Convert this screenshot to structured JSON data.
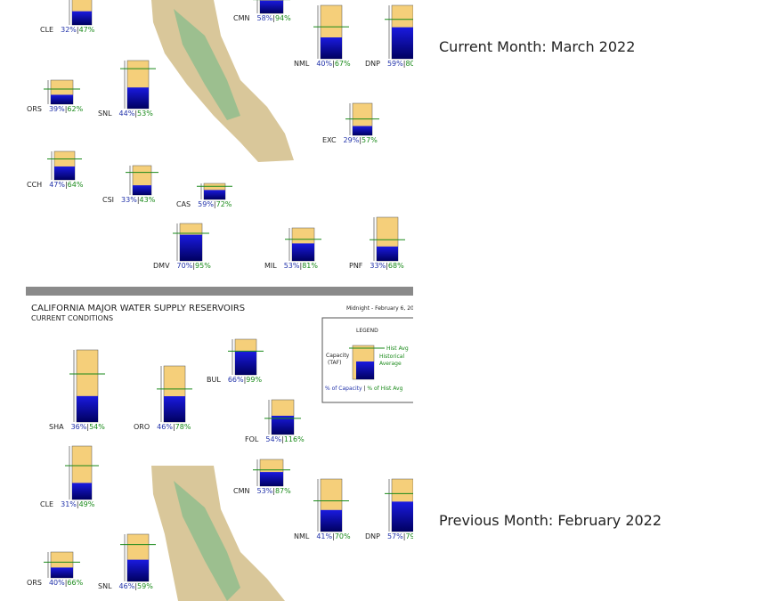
{
  "current_label": "Current Month: March 2022",
  "previous_label": "Previous Month: February 2022",
  "separator": "|",
  "panels": [
    {
      "reservoirs": [
        {
          "code": "CLE",
          "pct_capacity": 32,
          "pct_capacity_label": "32%",
          "pct_hist": 47,
          "pct_hist_label": "47%"
        },
        {
          "code": "CMN",
          "pct_capacity": 58,
          "pct_capacity_label": "58%",
          "pct_hist": 94,
          "pct_hist_label": "94%"
        },
        {
          "code": "NML",
          "pct_capacity": 40,
          "pct_capacity_label": "40%",
          "pct_hist": 67,
          "pct_hist_label": "67%"
        },
        {
          "code": "DNP",
          "pct_capacity": 59,
          "pct_capacity_label": "59%",
          "pct_hist": 80,
          "pct_hist_label": "80"
        },
        {
          "code": "ORS",
          "pct_capacity": 39,
          "pct_capacity_label": "39%",
          "pct_hist": 62,
          "pct_hist_label": "62%"
        },
        {
          "code": "SNL",
          "pct_capacity": 44,
          "pct_capacity_label": "44%",
          "pct_hist": 53,
          "pct_hist_label": "53%"
        },
        {
          "code": "EXC",
          "pct_capacity": 29,
          "pct_capacity_label": "29%",
          "pct_hist": 57,
          "pct_hist_label": "57%"
        },
        {
          "code": "CCH",
          "pct_capacity": 47,
          "pct_capacity_label": "47%",
          "pct_hist": 64,
          "pct_hist_label": "64%"
        },
        {
          "code": "CSI",
          "pct_capacity": 33,
          "pct_capacity_label": "33%",
          "pct_hist": 43,
          "pct_hist_label": "43%"
        },
        {
          "code": "CAS",
          "pct_capacity": 59,
          "pct_capacity_label": "59%",
          "pct_hist": 72,
          "pct_hist_label": "72%"
        },
        {
          "code": "DMV",
          "pct_capacity": 70,
          "pct_capacity_label": "70%",
          "pct_hist": 95,
          "pct_hist_label": "95%"
        },
        {
          "code": "MIL",
          "pct_capacity": 53,
          "pct_capacity_label": "53%",
          "pct_hist": 81,
          "pct_hist_label": "81%"
        },
        {
          "code": "PNF",
          "pct_capacity": 33,
          "pct_capacity_label": "33%",
          "pct_hist": 68,
          "pct_hist_label": "68%"
        }
      ]
    },
    {
      "title": "CALIFORNIA MAJOR WATER SUPPLY RESERVOIRS",
      "subtitle": "CURRENT CONDITIONS",
      "timestamp": "Midnight - February 6, 20",
      "legend": {
        "title": "LEGEND",
        "capacity": "Capacity",
        "capacity_unit": "(TAF)",
        "hist_avg": "Hist Avg",
        "historical": "Historical",
        "average": "Average",
        "pct_capacity": "% of Capacity",
        "pct_hist": "% of Hist Avg"
      },
      "reservoirs": [
        {
          "code": "SHA",
          "pct_capacity": 36,
          "pct_capacity_label": "36%",
          "pct_hist": 54,
          "pct_hist_label": "54%"
        },
        {
          "code": "ORO",
          "pct_capacity": 46,
          "pct_capacity_label": "46%",
          "pct_hist": 78,
          "pct_hist_label": "78%"
        },
        {
          "code": "BUL",
          "pct_capacity": 66,
          "pct_capacity_label": "66%",
          "pct_hist": 99,
          "pct_hist_label": "99%"
        },
        {
          "code": "FOL",
          "pct_capacity": 54,
          "pct_capacity_label": "54%",
          "pct_hist": 116,
          "pct_hist_label": "116%"
        },
        {
          "code": "CLE",
          "pct_capacity": 31,
          "pct_capacity_label": "31%",
          "pct_hist": 49,
          "pct_hist_label": "49%"
        },
        {
          "code": "CMN",
          "pct_capacity": 53,
          "pct_capacity_label": "53%",
          "pct_hist": 87,
          "pct_hist_label": "87%"
        },
        {
          "code": "NML",
          "pct_capacity": 41,
          "pct_capacity_label": "41%",
          "pct_hist": 70,
          "pct_hist_label": "70%"
        },
        {
          "code": "DNP",
          "pct_capacity": 57,
          "pct_capacity_label": "57%",
          "pct_hist": 79,
          "pct_hist_label": "79"
        },
        {
          "code": "ORS",
          "pct_capacity": 40,
          "pct_capacity_label": "40%",
          "pct_hist": 66,
          "pct_hist_label": "66%"
        },
        {
          "code": "SNL",
          "pct_capacity": 46,
          "pct_capacity_label": "46%",
          "pct_hist": 59,
          "pct_hist_label": "59%"
        }
      ]
    }
  ]
}
